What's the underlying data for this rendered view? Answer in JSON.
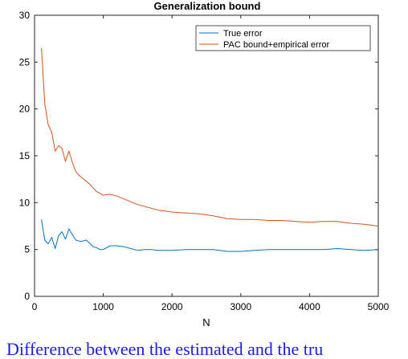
{
  "chart_data": {
    "type": "line",
    "title": "Generalization bound",
    "xlabel": "N",
    "ylabel": "",
    "xlim": [
      0,
      5000
    ],
    "ylim": [
      0,
      30
    ],
    "xticks": [
      0,
      1000,
      2000,
      3000,
      4000,
      5000
    ],
    "yticks": [
      0,
      5,
      10,
      15,
      20,
      25,
      30
    ],
    "grid": false,
    "legend_position": "top-right",
    "series": [
      {
        "name": "True error",
        "color": "#0072bd",
        "x": [
          100,
          150,
          200,
          250,
          300,
          350,
          400,
          450,
          500,
          550,
          600,
          650,
          700,
          750,
          800,
          850,
          900,
          950,
          1000,
          1100,
          1200,
          1300,
          1400,
          1500,
          1600,
          1700,
          1800,
          1900,
          2000,
          2200,
          2400,
          2600,
          2800,
          3000,
          3200,
          3400,
          3600,
          3800,
          4000,
          4200,
          4400,
          4600,
          4800,
          5000
        ],
        "y": [
          8.2,
          6.0,
          5.6,
          6.3,
          5.1,
          6.5,
          6.9,
          6.1,
          7.2,
          6.6,
          6.0,
          5.9,
          5.9,
          6.0,
          5.7,
          5.3,
          5.2,
          5.0,
          5.0,
          5.4,
          5.4,
          5.3,
          5.1,
          4.9,
          5.0,
          5.0,
          4.9,
          4.9,
          4.9,
          5.0,
          5.0,
          5.0,
          4.8,
          4.8,
          4.9,
          5.0,
          5.0,
          5.0,
          5.0,
          5.0,
          5.1,
          5.0,
          4.9,
          5.0
        ]
      },
      {
        "name": "PAC bound+empirical error",
        "color": "#d95319",
        "x": [
          100,
          150,
          200,
          250,
          300,
          350,
          400,
          450,
          500,
          550,
          600,
          650,
          700,
          750,
          800,
          850,
          900,
          950,
          1000,
          1100,
          1200,
          1300,
          1400,
          1500,
          1600,
          1700,
          1800,
          1900,
          2000,
          2200,
          2400,
          2600,
          2800,
          3000,
          3200,
          3400,
          3600,
          3800,
          4000,
          4200,
          4400,
          4600,
          4800,
          5000
        ],
        "y": [
          26.5,
          20.5,
          18.3,
          17.5,
          15.5,
          16.1,
          15.8,
          14.4,
          15.5,
          14.3,
          13.3,
          12.9,
          12.6,
          12.3,
          12.0,
          11.6,
          11.2,
          11.0,
          10.8,
          10.9,
          10.7,
          10.4,
          10.1,
          9.8,
          9.6,
          9.4,
          9.2,
          9.1,
          9.0,
          8.9,
          8.8,
          8.6,
          8.3,
          8.2,
          8.2,
          8.1,
          8.1,
          8.0,
          7.9,
          8.0,
          8.0,
          7.8,
          7.7,
          7.5
        ]
      }
    ]
  },
  "caption": "Difference between the estimated and the tru"
}
